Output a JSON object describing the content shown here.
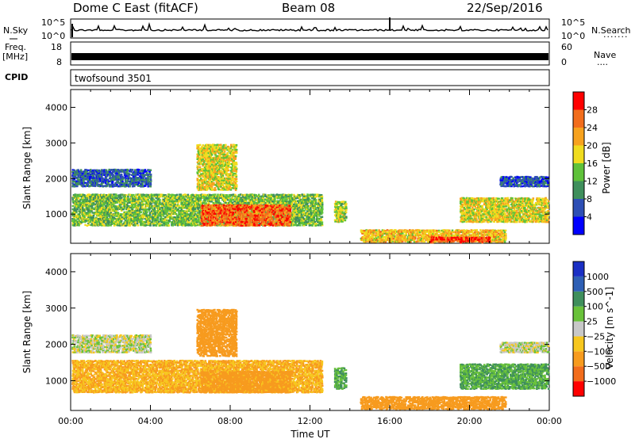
{
  "header": {
    "station": "Dome C East (fitACF)",
    "beam": "Beam 08",
    "date": "22/Sep/2016"
  },
  "panels": {
    "nsky": {
      "label": "N.Sky",
      "right_label": "N.Search",
      "left_ticks": [
        "10^5",
        "10^0"
      ],
      "right_ticks": [
        "10^5",
        "10^0"
      ]
    },
    "freq": {
      "label_lines": [
        "Freq.",
        "[MHz]"
      ],
      "right_label": "Nave",
      "left_ticks": [
        "18",
        "8"
      ],
      "right_ticks": [
        "60",
        "0"
      ]
    },
    "cpid": {
      "label": "CPID",
      "program": "twofsound 3501"
    }
  },
  "colors": {
    "power_scale": [
      "#0000ff",
      "#2e4fb5",
      "#3f8f5c",
      "#5fc23a",
      "#f0dc1e",
      "#f7a21e",
      "#f26d1c",
      "#ff0000"
    ],
    "velocity_scale": [
      "#1a2fc4",
      "#2e5fb5",
      "#3f8f5c",
      "#69c23a",
      "#c8c8c8",
      "#f7c71e",
      "#f79b1e",
      "#f26d1c",
      "#ff0000"
    ]
  },
  "chart_data": [
    {
      "type": "heatmap",
      "name": "power",
      "ylabel": "Slant Range [km]",
      "xlabel": "",
      "xlim": [
        0,
        24
      ],
      "ylim": [
        180,
        4500
      ],
      "x_ticks": [
        "00:00",
        "04:00",
        "08:00",
        "12:00",
        "16:00",
        "20:00",
        "00:00"
      ],
      "y_ticks": [
        1000,
        2000,
        3000,
        4000
      ],
      "colorbar": {
        "label": "Power [dB]",
        "ticks": [
          4,
          8,
          12,
          16,
          20,
          24,
          28
        ],
        "range": [
          0,
          32
        ]
      },
      "echo_regions": [
        {
          "t0": 0.0,
          "t1": 12.6,
          "r0": 700,
          "r1": 1600,
          "value": 14
        },
        {
          "t0": 6.5,
          "t1": 11.0,
          "r0": 700,
          "r1": 1300,
          "value": 26
        },
        {
          "t0": 0.0,
          "t1": 4.0,
          "r0": 1800,
          "r1": 2300,
          "value": 7
        },
        {
          "t0": 6.3,
          "t1": 8.3,
          "r0": 1700,
          "r1": 3000,
          "value": 18
        },
        {
          "t0": 13.2,
          "t1": 13.8,
          "r0": 800,
          "r1": 1400,
          "value": 16
        },
        {
          "t0": 14.5,
          "t1": 21.8,
          "r0": 200,
          "r1": 600,
          "value": 20
        },
        {
          "t0": 18.0,
          "t1": 21.0,
          "r0": 200,
          "r1": 400,
          "value": 28
        },
        {
          "t0": 19.5,
          "t1": 24.0,
          "r0": 800,
          "r1": 1500,
          "value": 18
        },
        {
          "t0": 21.5,
          "t1": 24.0,
          "r0": 1800,
          "r1": 2100,
          "value": 6
        }
      ]
    },
    {
      "type": "heatmap",
      "name": "velocity",
      "ylabel": "Slant Range [km]",
      "xlabel": "Time UT",
      "xlim": [
        0,
        24
      ],
      "ylim": [
        180,
        4500
      ],
      "x_ticks": [
        "00:00",
        "04:00",
        "08:00",
        "12:00",
        "16:00",
        "20:00",
        "00:00"
      ],
      "y_ticks": [
        1000,
        2000,
        3000,
        4000
      ],
      "colorbar": {
        "label": "Velocity [m s^-1]",
        "ticks": [
          "1000",
          "500",
          "100",
          "25",
          "−25",
          "−100",
          "−500",
          "−1000"
        ]
      },
      "echo_regions": [
        {
          "t0": 0.0,
          "t1": 12.6,
          "r0": 700,
          "r1": 1600,
          "value": -100
        },
        {
          "t0": 6.5,
          "t1": 11.0,
          "r0": 700,
          "r1": 1300,
          "value": -150
        },
        {
          "t0": 0.0,
          "t1": 4.0,
          "r0": 1800,
          "r1": 2300,
          "value": 0
        },
        {
          "t0": 6.3,
          "t1": 8.3,
          "r0": 1700,
          "r1": 3000,
          "value": -200
        },
        {
          "t0": 13.2,
          "t1": 13.8,
          "r0": 800,
          "r1": 1400,
          "value": 100
        },
        {
          "t0": 14.5,
          "t1": 21.8,
          "r0": 200,
          "r1": 600,
          "value": -200
        },
        {
          "t0": 19.5,
          "t1": 24.0,
          "r0": 800,
          "r1": 1500,
          "value": 100
        },
        {
          "t0": 21.5,
          "t1": 24.0,
          "r0": 1800,
          "r1": 2100,
          "value": 0
        }
      ]
    }
  ]
}
